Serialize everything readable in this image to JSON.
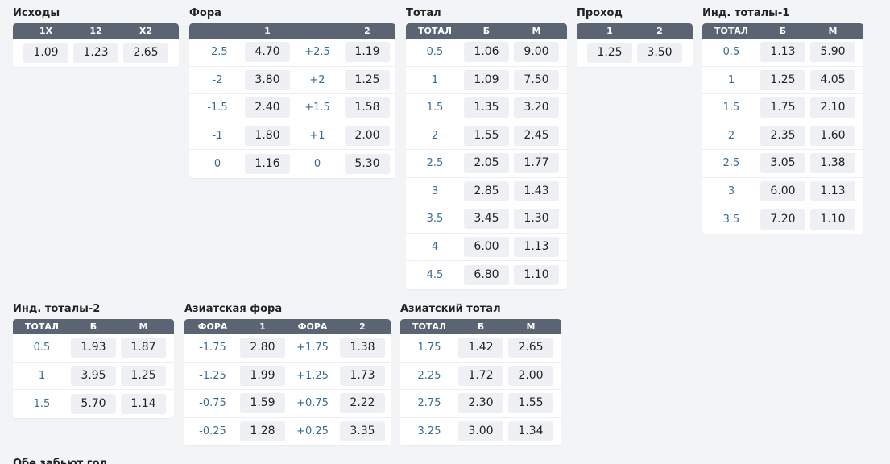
{
  "blocks": [
    {
      "id": "outcomes",
      "title": "Исходы",
      "headers": [
        "1X",
        "12",
        "X2"
      ],
      "rows": [
        [
          "1.09",
          "1.23",
          "2.65"
        ]
      ]
    },
    {
      "id": "handicap",
      "title": "Фора",
      "headers": [
        "",
        "1",
        "",
        "2"
      ],
      "rows": [
        [
          "-2.5",
          "4.70",
          "+2.5",
          "1.19"
        ],
        [
          "-2",
          "3.80",
          "+2",
          "1.25"
        ],
        [
          "-1.5",
          "2.40",
          "+1.5",
          "1.58"
        ],
        [
          "-1",
          "1.80",
          "+1",
          "2.00"
        ],
        [
          "0",
          "1.16",
          "0",
          "5.30"
        ]
      ]
    },
    {
      "id": "total",
      "title": "Тотал",
      "headers": [
        "ТОТАЛ",
        "Б",
        "М"
      ],
      "rows": [
        [
          "0.5",
          "1.06",
          "9.00"
        ],
        [
          "1",
          "1.09",
          "7.50"
        ],
        [
          "1.5",
          "1.35",
          "3.20"
        ],
        [
          "2",
          "1.55",
          "2.45"
        ],
        [
          "2.5",
          "2.05",
          "1.77"
        ],
        [
          "3",
          "2.85",
          "1.43"
        ],
        [
          "3.5",
          "3.45",
          "1.30"
        ],
        [
          "4",
          "6.00",
          "1.13"
        ],
        [
          "4.5",
          "6.80",
          "1.10"
        ]
      ]
    },
    {
      "id": "pass",
      "title": "Проход",
      "headers": [
        "1",
        "2"
      ],
      "rows": [
        [
          "1.25",
          "3.50"
        ]
      ]
    },
    {
      "id": "ind_total_1",
      "title": "Инд. тоталы-1",
      "headers": [
        "ТОТАЛ",
        "Б",
        "М"
      ],
      "rows": [
        [
          "0.5",
          "1.13",
          "5.90"
        ],
        [
          "1",
          "1.25",
          "4.05"
        ],
        [
          "1.5",
          "1.75",
          "2.10"
        ],
        [
          "2",
          "2.35",
          "1.60"
        ],
        [
          "2.5",
          "3.05",
          "1.38"
        ],
        [
          "3",
          "6.00",
          "1.13"
        ],
        [
          "3.5",
          "7.20",
          "1.10"
        ]
      ]
    },
    {
      "id": "ind_total_2",
      "title": "Инд. тоталы-2",
      "headers": [
        "ТОТАЛ",
        "Б",
        "М"
      ],
      "rows": [
        [
          "0.5",
          "1.93",
          "1.87"
        ],
        [
          "1",
          "3.95",
          "1.25"
        ],
        [
          "1.5",
          "5.70",
          "1.14"
        ]
      ]
    },
    {
      "id": "asian_handicap",
      "title": "Азиатская фора",
      "headers": [
        "ФОРА",
        "1",
        "ФОРА",
        "2"
      ],
      "rows": [
        [
          "-1.75",
          "2.80",
          "+1.75",
          "1.38"
        ],
        [
          "-1.25",
          "1.99",
          "+1.25",
          "1.73"
        ],
        [
          "-0.75",
          "1.59",
          "+0.75",
          "2.22"
        ],
        [
          "-0.25",
          "1.28",
          "+0.25",
          "3.35"
        ]
      ]
    },
    {
      "id": "asian_total",
      "title": "Азиатский тотал",
      "headers": [
        "ТОТАЛ",
        "Б",
        "М"
      ],
      "rows": [
        [
          "1.75",
          "1.42",
          "2.65"
        ],
        [
          "2.25",
          "1.72",
          "2.00"
        ],
        [
          "2.75",
          "2.30",
          "1.55"
        ],
        [
          "3.25",
          "3.00",
          "1.34"
        ]
      ]
    }
  ],
  "footer_title": "Обе забьют гол"
}
